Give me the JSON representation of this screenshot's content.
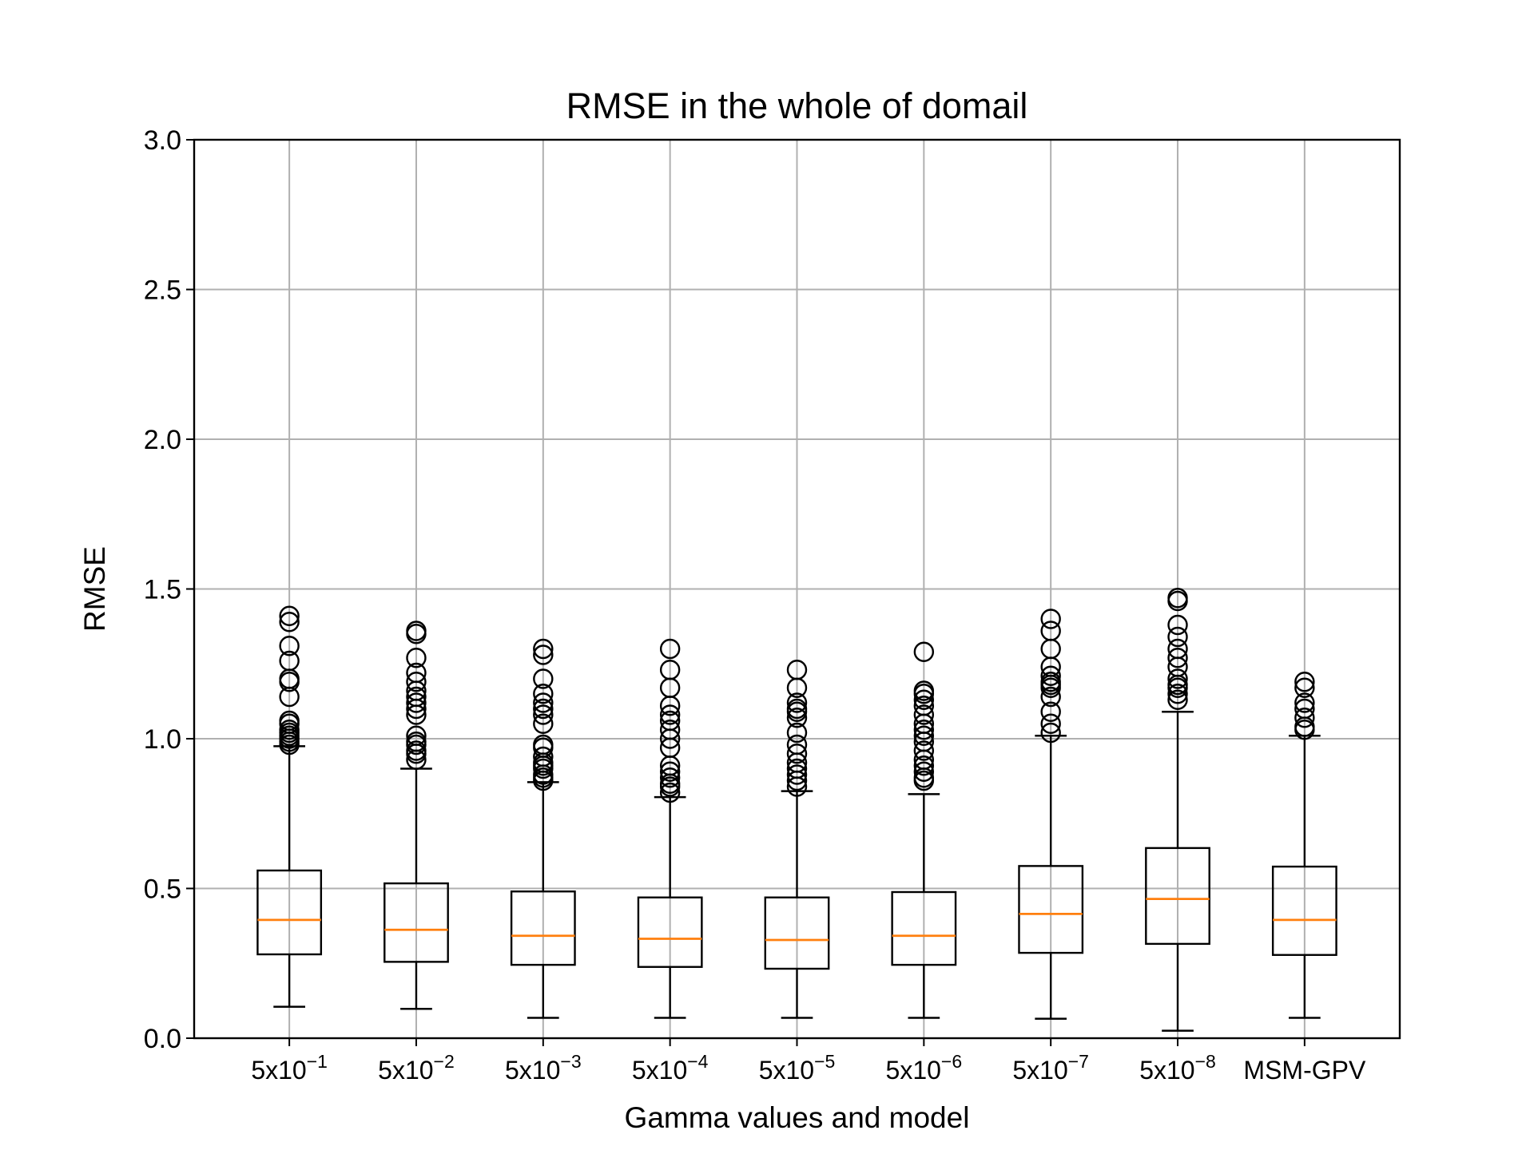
{
  "chart_data": {
    "type": "box",
    "title": "RMSE in the whole of domail",
    "xlabel": "Gamma values and model",
    "ylabel": "RMSE",
    "ylim": [
      0.0,
      3.0
    ],
    "yticks": [
      "0.0",
      "0.5",
      "1.0",
      "1.5",
      "2.0",
      "2.5",
      "3.0"
    ],
    "grid": true,
    "categories": [
      {
        "base": "5x10",
        "exp": "−1"
      },
      {
        "base": "5x10",
        "exp": "−2"
      },
      {
        "base": "5x10",
        "exp": "−3"
      },
      {
        "base": "5x10",
        "exp": "−4"
      },
      {
        "base": "5x10",
        "exp": "−5"
      },
      {
        "base": "5x10",
        "exp": "−6"
      },
      {
        "base": "5x10",
        "exp": "−7"
      },
      {
        "base": "5x10",
        "exp": "−8"
      },
      {
        "base": "MSM-GPV",
        "exp": ""
      }
    ],
    "boxes": [
      {
        "whisker_low": 0.105,
        "q1": 0.28,
        "median": 0.395,
        "q3": 0.56,
        "whisker_high": 0.975,
        "outliers": [
          0.98,
          0.99,
          1.0,
          1.01,
          1.02,
          1.03,
          1.05,
          1.06,
          1.14,
          1.19,
          1.2,
          1.26,
          1.31,
          1.39,
          1.41
        ]
      },
      {
        "whisker_low": 0.098,
        "q1": 0.255,
        "median": 0.362,
        "q3": 0.517,
        "whisker_high": 0.9,
        "outliers": [
          0.93,
          0.95,
          0.96,
          0.98,
          0.99,
          1.01,
          1.08,
          1.1,
          1.12,
          1.14,
          1.16,
          1.19,
          1.22,
          1.27,
          1.35,
          1.36
        ]
      },
      {
        "whisker_low": 0.068,
        "q1": 0.245,
        "median": 0.342,
        "q3": 0.49,
        "whisker_high": 0.855,
        "outliers": [
          0.86,
          0.87,
          0.88,
          0.9,
          0.91,
          0.92,
          0.94,
          0.97,
          0.98,
          1.05,
          1.08,
          1.1,
          1.12,
          1.15,
          1.2,
          1.28,
          1.3
        ]
      },
      {
        "whisker_low": 0.068,
        "q1": 0.238,
        "median": 0.332,
        "q3": 0.47,
        "whisker_high": 0.805,
        "outliers": [
          0.82,
          0.84,
          0.85,
          0.87,
          0.89,
          0.91,
          0.97,
          1.0,
          1.03,
          1.06,
          1.08,
          1.11,
          1.17,
          1.23,
          1.3
        ]
      },
      {
        "whisker_low": 0.068,
        "q1": 0.232,
        "median": 0.328,
        "q3": 0.47,
        "whisker_high": 0.825,
        "outliers": [
          0.84,
          0.86,
          0.88,
          0.9,
          0.92,
          0.95,
          0.98,
          1.02,
          1.07,
          1.09,
          1.1,
          1.12,
          1.17,
          1.23
        ]
      },
      {
        "whisker_low": 0.068,
        "q1": 0.245,
        "median": 0.342,
        "q3": 0.488,
        "whisker_high": 0.815,
        "outliers": [
          0.86,
          0.87,
          0.89,
          0.91,
          0.93,
          0.96,
          0.99,
          1.01,
          1.03,
          1.05,
          1.08,
          1.11,
          1.13,
          1.15,
          1.16,
          1.29
        ]
      },
      {
        "whisker_low": 0.065,
        "q1": 0.285,
        "median": 0.415,
        "q3": 0.575,
        "whisker_high": 1.01,
        "outliers": [
          1.02,
          1.05,
          1.09,
          1.14,
          1.17,
          1.18,
          1.19,
          1.21,
          1.24,
          1.3,
          1.36,
          1.4
        ]
      },
      {
        "whisker_low": 0.025,
        "q1": 0.315,
        "median": 0.465,
        "q3": 0.635,
        "whisker_high": 1.09,
        "outliers": [
          1.13,
          1.15,
          1.17,
          1.18,
          1.2,
          1.24,
          1.27,
          1.3,
          1.34,
          1.38,
          1.46,
          1.47
        ]
      },
      {
        "whisker_low": 0.068,
        "q1": 0.278,
        "median": 0.395,
        "q3": 0.573,
        "whisker_high": 1.01,
        "outliers": [
          1.03,
          1.04,
          1.07,
          1.1,
          1.12,
          1.17,
          1.19
        ]
      }
    ],
    "colors": {
      "box": "#000000",
      "median": "#ff7f0e",
      "grid": "#b0b0b0",
      "axes": "#000000"
    }
  }
}
